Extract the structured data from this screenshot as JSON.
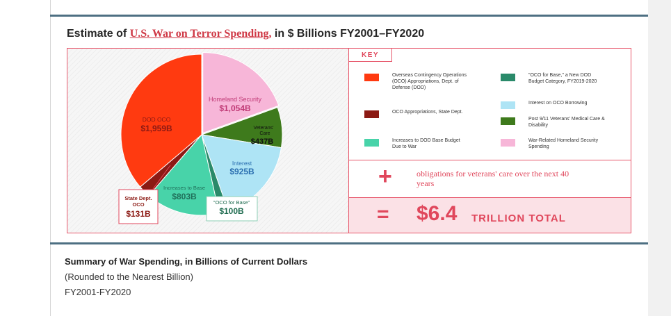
{
  "figure": {
    "title_prefix": "Estimate of ",
    "title_link": "U.S. War on Terror Spending,",
    "title_suffix": " in $ Billions FY2001–FY2020"
  },
  "chart_data": {
    "type": "pie",
    "title": "Estimate of U.S. War on Terror Spending, in $ Billions FY2001–FY2020",
    "units": "$ Billions",
    "slices": [
      {
        "id": "homeland",
        "label": "Homeland Security",
        "value_label": "$1,054B",
        "value": 1054,
        "color": "#f7b6d8"
      },
      {
        "id": "veterans",
        "label": "Veterans' Care",
        "value_label": "$437B",
        "value": 437,
        "color": "#3e7a1c"
      },
      {
        "id": "interest",
        "label": "Interest",
        "value_label": "$925B",
        "value": 925,
        "color": "#aee4f5"
      },
      {
        "id": "ocobase",
        "label": "\"OCO for Base\"",
        "value_label": "$100B",
        "value": 100,
        "color": "#2a8a6a"
      },
      {
        "id": "base",
        "label": "Increases to Base",
        "value_label": "$803B",
        "value": 803,
        "color": "#48d3a9"
      },
      {
        "id": "statedept",
        "label": "State Dept. OCO",
        "value_label": "$131B",
        "value": 131,
        "color": "#8c1a14"
      },
      {
        "id": "dodoco",
        "label": "DOD OCO",
        "value_label": "$1,959B",
        "value": 1959,
        "color": "#ff3a10"
      }
    ]
  },
  "pie_labels": {
    "dod_oco_name": "DOD OCO",
    "dod_oco_value": "$1,959B",
    "homeland_name": "Homeland Security",
    "homeland_value": "$1,054B",
    "veterans_name_1": "Veterans'",
    "veterans_name_2": "Care",
    "veterans_value": "$437B",
    "interest_name": "Interest",
    "interest_value": "$925B",
    "base_name": "Increases to Base",
    "base_value": "$803B",
    "state_name_1": "State Dept.",
    "state_name_2": "OCO",
    "state_value": "$131B",
    "ocobase_name": "\"OCO for Base\"",
    "ocobase_value": "$100B"
  },
  "key": {
    "label": "KEY",
    "items": [
      {
        "text": "Overseas Contingency Operations (OCO) Appropriations, Dept. of Defense (DOD)",
        "color": "#ff3a10"
      },
      {
        "text": "OCO Appropriations, State Dept.",
        "color": "#8c1a14"
      },
      {
        "text": "Increases to DOD Base Budget Due to War",
        "color": "#48d3a9"
      },
      {
        "text": "\"OCO for Base,\" a New DOD Budget Category, FY2019-2020",
        "color": "#2a8a6a"
      },
      {
        "text": "Interest on OCO Borrowing",
        "color": "#aee4f5"
      },
      {
        "text": "Post 9/11 Veterans' Medical Care & Disability",
        "color": "#3e7a1c"
      },
      {
        "text": "War-Related Homeland Security Spending",
        "color": "#f7b6d8"
      }
    ]
  },
  "totals": {
    "plus_symbol": "+",
    "plus_text": "obligations for veterans' care over the next 40 years",
    "equals_symbol": "=",
    "amount": "$6.4",
    "label": "TRILLION TOTAL"
  },
  "summary": {
    "title": "Summary of War Spending, in Billions of Current Dollars",
    "subtitle": "(Rounded to the Nearest Billion)",
    "range": "FY2001-FY2020"
  }
}
